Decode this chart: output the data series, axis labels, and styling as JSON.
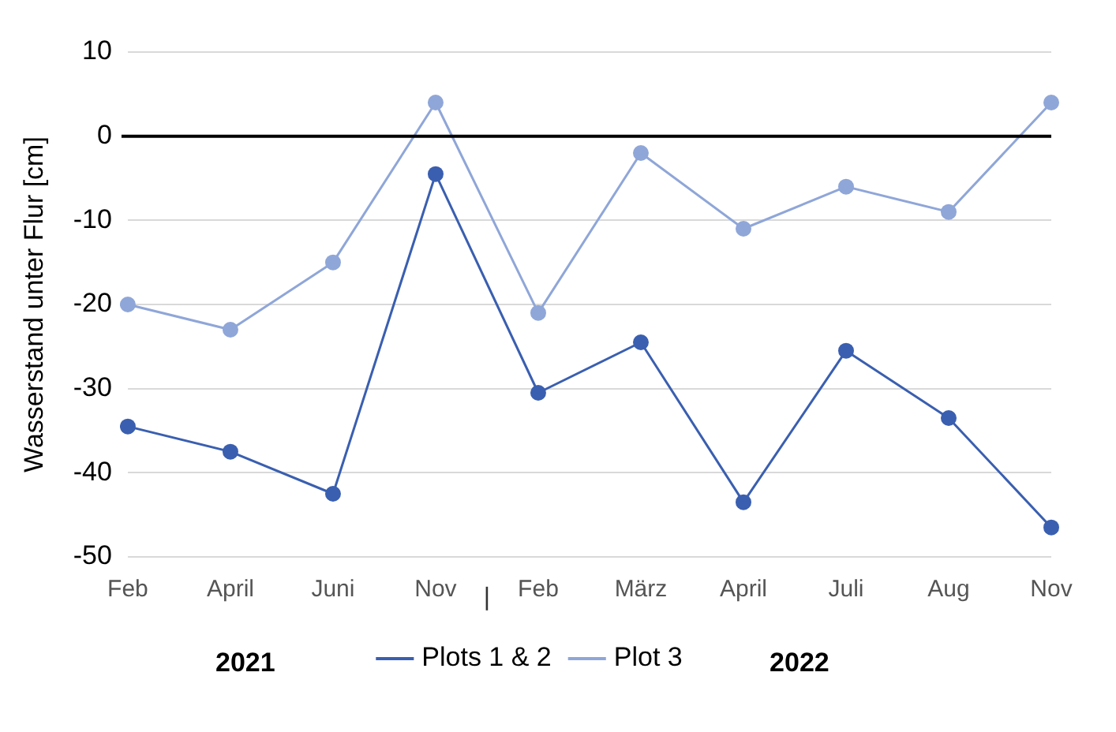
{
  "chart_data": {
    "type": "line",
    "ylabel": "Wasserstand unter Flur [cm]",
    "categories": [
      "Feb",
      "April",
      "Juni",
      "Nov",
      "Feb",
      "März",
      "April",
      "Juli",
      "Aug",
      "Nov"
    ],
    "series": [
      {
        "name": "Plots 1 & 2",
        "color": "#3a5fb0",
        "values": [
          -34.5,
          -37.5,
          -42.5,
          -4.5,
          -30.5,
          -24.5,
          -43.5,
          -25.5,
          -33.5,
          -46.5
        ]
      },
      {
        "name": "Plot 3",
        "color": "#8fa6d8",
        "values": [
          -20,
          -23,
          -15,
          4,
          -21,
          -2,
          -11,
          -6,
          -9,
          4
        ]
      }
    ],
    "ylim": [
      -50,
      10
    ],
    "yticks": [
      -50,
      -40,
      -30,
      -20,
      -10,
      0,
      10
    ],
    "ref_lines": [
      {
        "axis": "y",
        "value": 0,
        "color": "#000000"
      }
    ],
    "annotations": [
      "2021",
      "|",
      "2022"
    ],
    "grid": "y",
    "legend": "bottom",
    "marker": "circle",
    "line_style": "solid"
  }
}
